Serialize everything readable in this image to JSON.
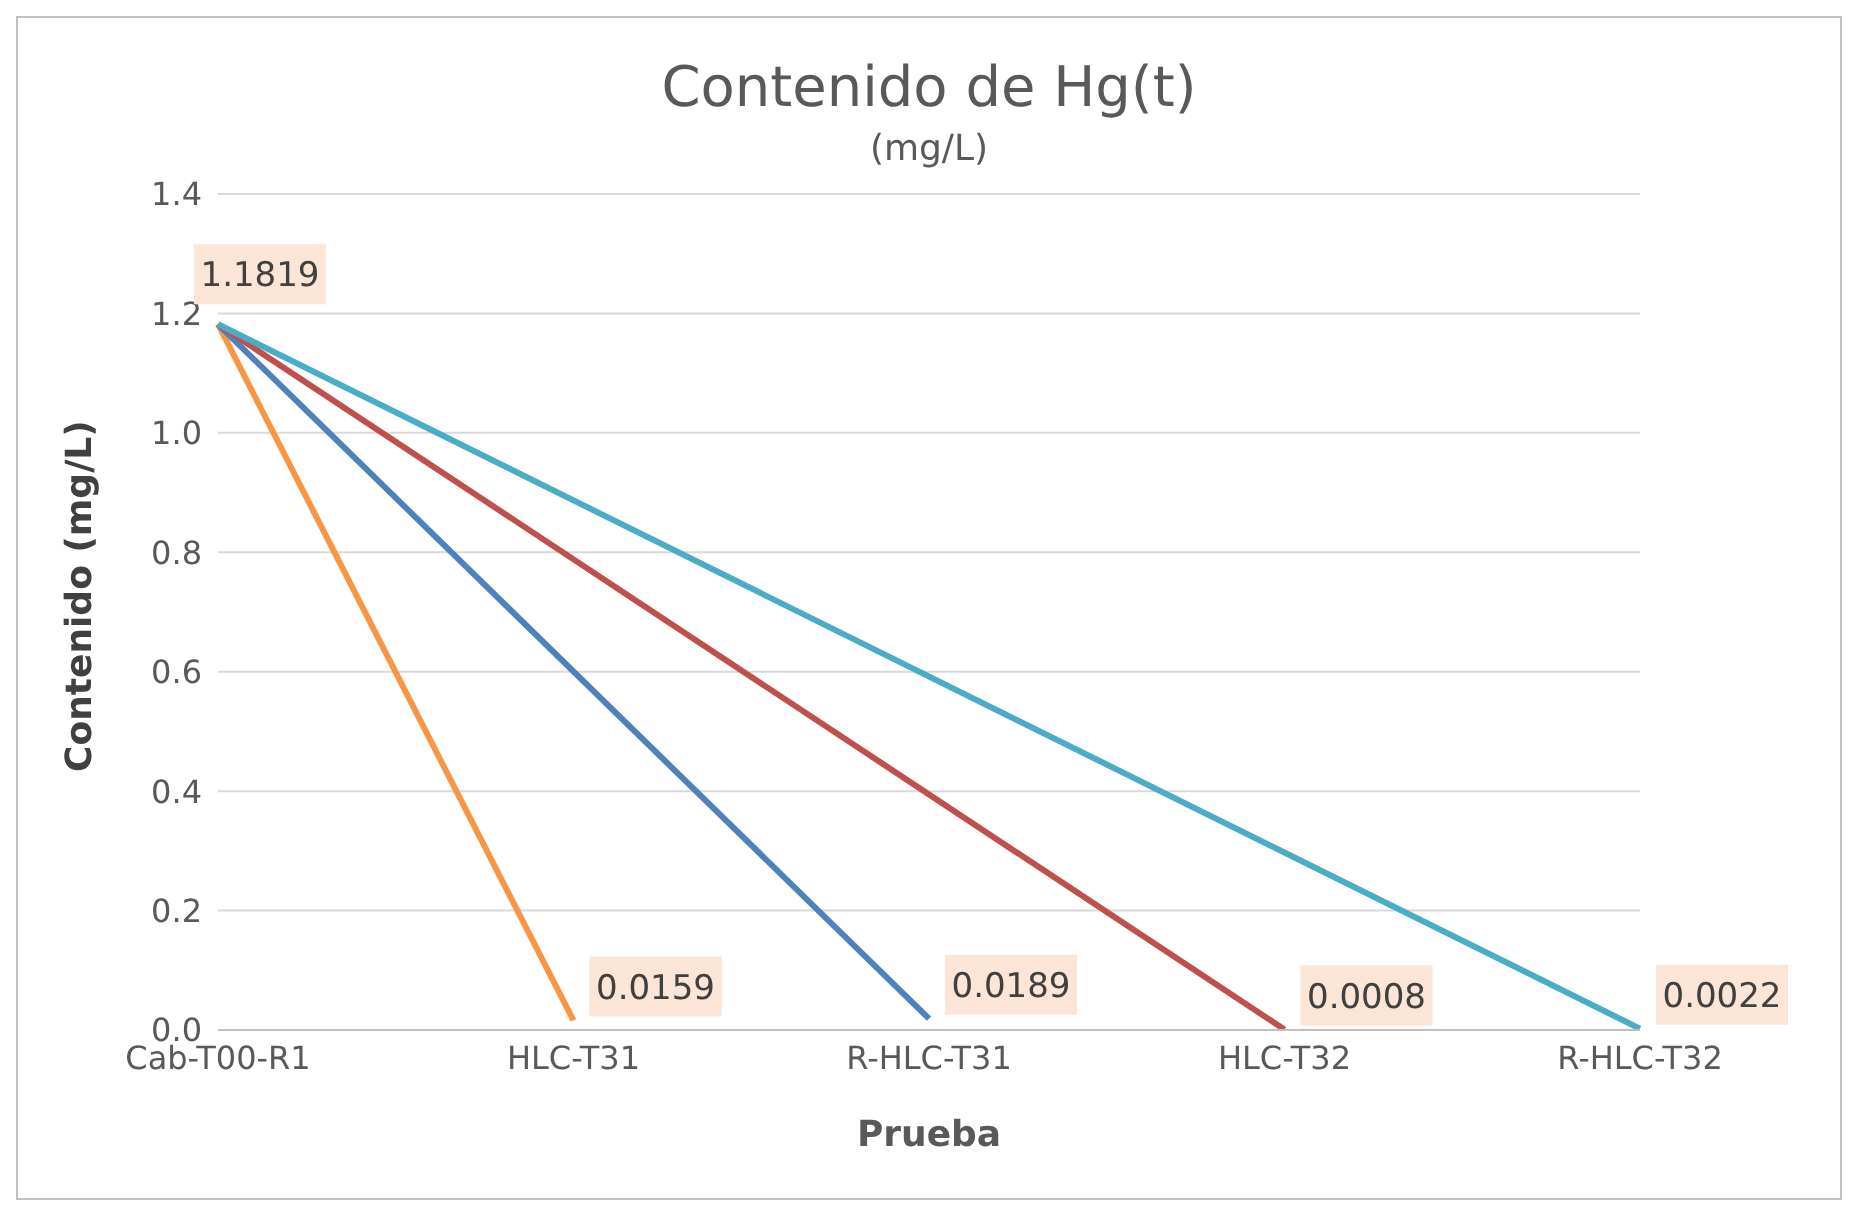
{
  "chart_data": {
    "type": "line",
    "title": "Contenido de Hg(t)",
    "subtitle": "(mg/L)",
    "xlabel": "Prueba",
    "ylabel": "Contenido (mg/L)",
    "categories": [
      "Cab-T00-R1",
      "HLC-T31",
      "R-HLC-T31",
      "HLC-T32",
      "R-HLC-T32"
    ],
    "series": [
      {
        "color": "#f79646",
        "values": [
          1.1819,
          0.0159,
          null,
          null,
          null
        ],
        "value_labels": [
          "1.1819",
          "0.0159",
          null,
          null,
          null
        ]
      },
      {
        "color": "#4f81bd",
        "values": [
          1.1819,
          null,
          0.0189,
          null,
          null
        ],
        "value_labels": [
          null,
          null,
          "0.0189",
          null,
          null
        ]
      },
      {
        "color": "#c0504d",
        "values": [
          1.1819,
          null,
          null,
          0.0008,
          null
        ],
        "value_labels": [
          null,
          null,
          null,
          "0.0008",
          null
        ]
      },
      {
        "color": "#4bacc6",
        "values": [
          1.1819,
          null,
          null,
          null,
          0.0022
        ],
        "value_labels": [
          null,
          null,
          null,
          null,
          "0.0022"
        ]
      }
    ],
    "ylim": [
      0,
      1.4
    ],
    "yticks": [
      {
        "value": 0,
        "label": "0.0"
      },
      0.2,
      0.4,
      0.6,
      0.8,
      {
        "value": 1,
        "label": "1.0"
      },
      1.2,
      1.4
    ],
    "grid": "y",
    "legend": false,
    "marker": "none",
    "line_style": "solid"
  }
}
